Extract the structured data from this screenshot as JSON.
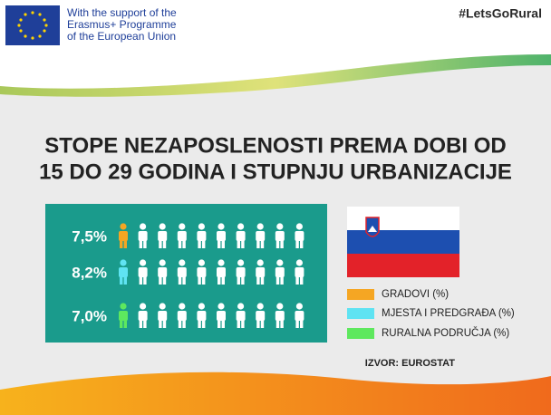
{
  "header": {
    "support_lines": [
      "With the support of the",
      "Erasmus+ Programme",
      "of the European Union"
    ],
    "hashtag": "#LetsGoRural"
  },
  "chart_data": {
    "type": "pictogram",
    "title_lines": [
      "STOPE NEZAPOSLENOSTI PREMA DOBI OD",
      "15 DO 29 GODINA I STUPNJU URBANIZACIJE"
    ],
    "series": [
      {
        "name": "GRADOVI (%)",
        "color": "#f5a623",
        "values": [
          7.5
        ],
        "value_labels": [
          "7,5%"
        ]
      },
      {
        "name": "MJESTA I PREDGRAĐA (%)",
        "color": "#5fe3f2",
        "values": [
          8.2
        ],
        "value_labels": [
          "8,2%"
        ]
      },
      {
        "name": "RURALNA PODRUČJA (%)",
        "color": "#5ee85e",
        "values": [
          7.0
        ],
        "value_labels": [
          "7,0%"
        ]
      }
    ],
    "source": "IZVOR: EUROSTAT"
  }
}
